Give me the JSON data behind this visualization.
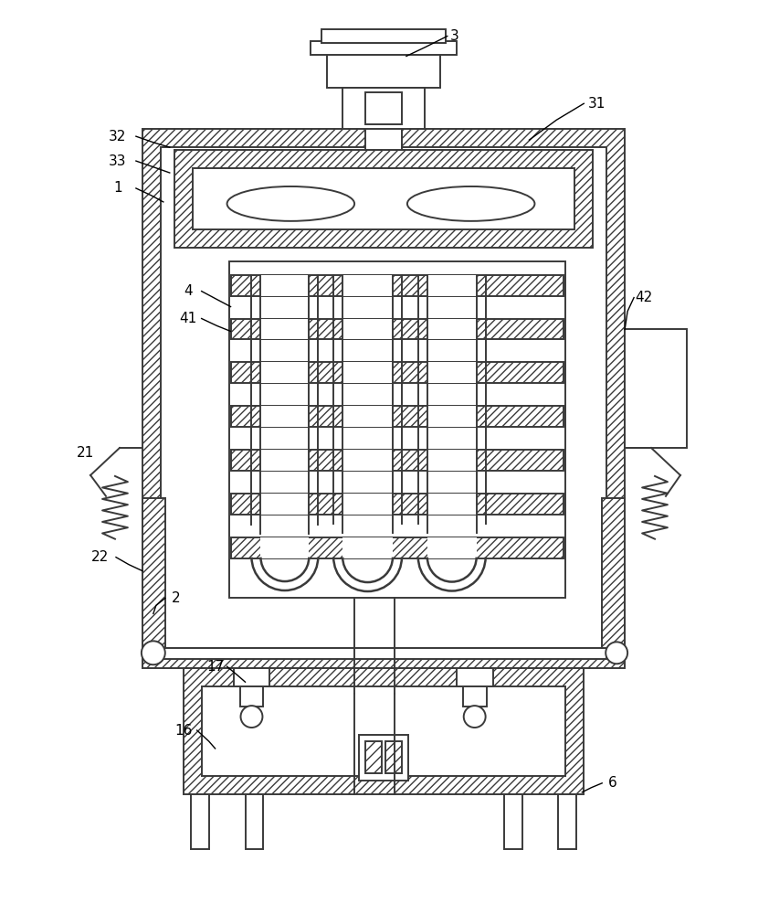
{
  "bg_color": "#ffffff",
  "lc": "#3a3a3a",
  "lw": 1.4,
  "figsize": [
    8.42,
    10.0
  ],
  "dpi": 100
}
